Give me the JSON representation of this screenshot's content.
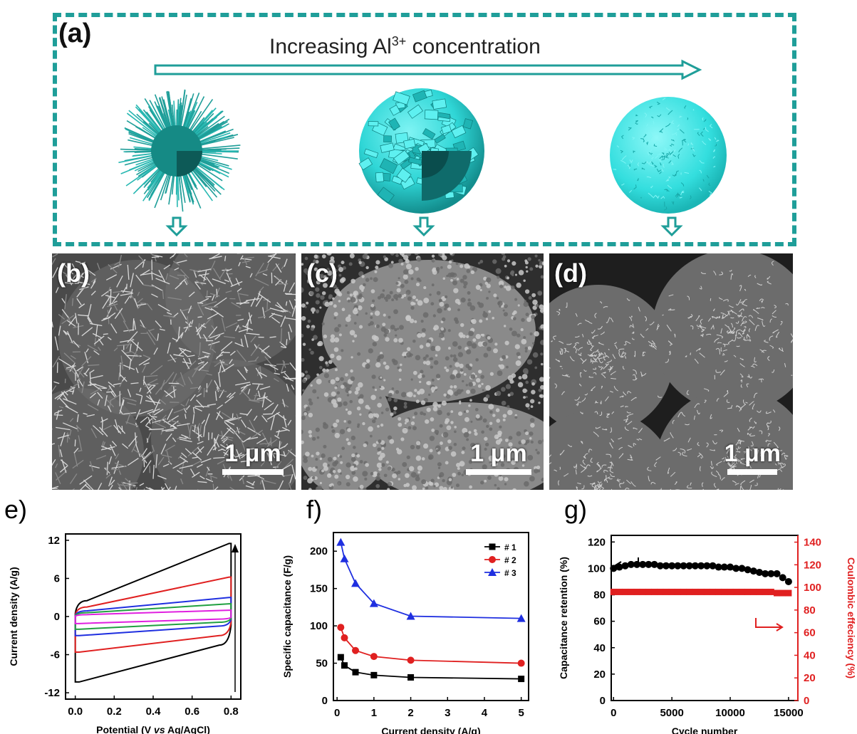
{
  "panel_a": {
    "label": "(a)",
    "arrow_text": "Increasing Al",
    "arrow_text_sup": "3+",
    "arrow_text_tail": " concentration"
  },
  "sem_panels": [
    {
      "label": "(b)",
      "scale": "1 μm"
    },
    {
      "label": "(c)",
      "scale": "1 μm"
    },
    {
      "label": "(d)",
      "scale": "1 μm"
    }
  ],
  "chart_labels": {
    "e": "e)",
    "f": "f)",
    "g": "g)"
  },
  "colors": {
    "teal": "#1f9e99",
    "cyan_sphere": "#2fd6d6",
    "series_1": "#000000",
    "series_2": "#e02020",
    "series_3": "#1f2fe0",
    "magenta": "#e020e0",
    "green": "#20a040"
  },
  "chart_data": [
    {
      "id": "e",
      "type": "line",
      "xlabel": "Potential (V vs Ag/AgCl)",
      "xlabel_italic_part": "vs",
      "ylabel": "Current density (A/g)",
      "xlim": [
        -0.05,
        0.85
      ],
      "ylim": [
        -13,
        13
      ],
      "xticks": [
        "0.0",
        "0.2",
        "0.4",
        "0.6",
        "0.8"
      ],
      "yticks": [
        "12",
        "6",
        "0",
        "-6",
        "-12"
      ],
      "curves": [
        {
          "color": "#000000",
          "top_start": 2.5,
          "top_end": 11.5,
          "bot_start": -10.3,
          "bot_end": -4.5
        },
        {
          "color": "#e02020",
          "top_start": 1.5,
          "top_end": 6.2,
          "bot_start": -5.6,
          "bot_end": -3.0
        },
        {
          "color": "#1f2fe0",
          "top_start": 0.9,
          "top_end": 3.0,
          "bot_start": -3.0,
          "bot_end": -1.5
        },
        {
          "color": "#20a040",
          "top_start": 0.6,
          "top_end": 2.0,
          "bot_start": -2.0,
          "bot_end": -0.9
        },
        {
          "color": "#e020e0",
          "top_start": 0.3,
          "top_end": 1.0,
          "bot_start": -1.1,
          "bot_end": -0.4
        }
      ]
    },
    {
      "id": "f",
      "type": "line",
      "xlabel": "Current density (A/g)",
      "ylabel": "Specific capacitance (F/g)",
      "xlim": [
        -0.1,
        5.2
      ],
      "ylim": [
        0,
        225
      ],
      "xticks": [
        "0",
        "1",
        "2",
        "3",
        "4",
        "5"
      ],
      "yticks": [
        "0",
        "50",
        "100",
        "150",
        "200"
      ],
      "x": [
        0.1,
        0.2,
        0.5,
        1,
        2,
        5
      ],
      "series": [
        {
          "name": "# 1",
          "color": "#000000",
          "marker": "square",
          "values": [
            58,
            47,
            38,
            34,
            31,
            29
          ]
        },
        {
          "name": "# 2",
          "color": "#e02020",
          "marker": "circle",
          "values": [
            98,
            84,
            67,
            59,
            54,
            50
          ]
        },
        {
          "name": "# 3",
          "color": "#1f2fe0",
          "marker": "triangle",
          "values": [
            212,
            190,
            157,
            130,
            113,
            110
          ]
        }
      ],
      "legend": "top-right"
    },
    {
      "id": "g",
      "type": "scatter",
      "xlabel": "Cycle number",
      "ylabel": "Capacitance retention (%)",
      "ylabel_right": "Coulombic effeciency (%)",
      "xlim": [
        -200,
        15800
      ],
      "ylim": [
        0,
        125
      ],
      "ylim_right": [
        0,
        146
      ],
      "xticks": [
        "0",
        "5000",
        "10000",
        "15000"
      ],
      "yticks": [
        "0",
        "20",
        "40",
        "60",
        "80",
        "100",
        "120"
      ],
      "yticks_right": [
        "0",
        "20",
        "40",
        "60",
        "80",
        "100",
        "120",
        "140"
      ],
      "series": [
        {
          "name": "Capacitance retention",
          "color": "#000000",
          "axis": "left",
          "x": [
            0,
            500,
            1000,
            1500,
            2000,
            2500,
            3000,
            3500,
            4000,
            4500,
            5000,
            5500,
            6000,
            6500,
            7000,
            7500,
            8000,
            8500,
            9000,
            9500,
            10000,
            10500,
            11000,
            11500,
            12000,
            12500,
            13000,
            13500,
            14000,
            14500,
            15000
          ],
          "values": [
            100,
            101,
            102,
            103,
            103,
            103,
            103,
            103,
            102,
            102,
            102,
            102,
            102,
            102,
            102,
            102,
            102,
            102,
            101,
            101,
            101,
            100,
            100,
            99,
            98,
            97,
            96,
            96,
            96,
            93,
            90
          ]
        },
        {
          "name": "Coulombic efficiency",
          "color": "#e02020",
          "axis": "right",
          "x": [
            0,
            500,
            1000,
            1500,
            2000,
            2500,
            3000,
            3500,
            4000,
            4500,
            5000,
            5500,
            6000,
            6500,
            7000,
            7500,
            8000,
            8500,
            9000,
            9500,
            10000,
            10500,
            11000,
            11500,
            12000,
            12500,
            13000,
            13500,
            14000,
            14500,
            15000
          ],
          "values": [
            96,
            96,
            96,
            96,
            96,
            96,
            96,
            96,
            96,
            96,
            96,
            96,
            96,
            96,
            96,
            96,
            96,
            96,
            96,
            96,
            96,
            96,
            96,
            96,
            96,
            96,
            96,
            96,
            95,
            95,
            95
          ]
        }
      ]
    }
  ]
}
